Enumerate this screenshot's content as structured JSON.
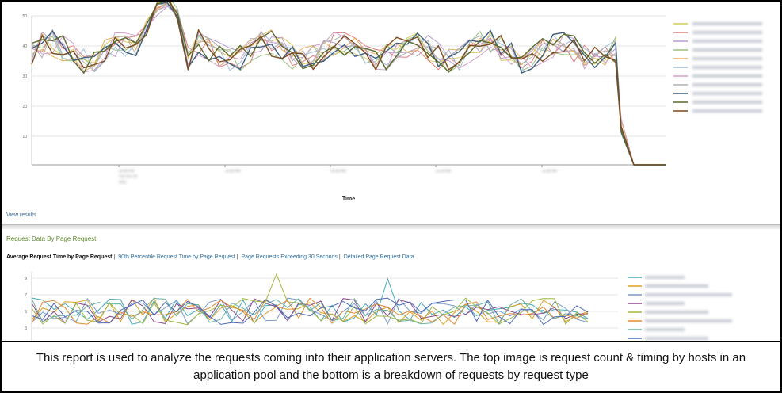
{
  "top_chart": {
    "y_ticks": [
      "50",
      "40",
      "30",
      "20",
      "10"
    ],
    "x_ticks": [
      "10:30 PM",
      "10:45 PM",
      "10:00 PM",
      "11:15 PM",
      "11:30 PM"
    ],
    "x_tick_sublabel": [
      "Tue Nov 29",
      "2011"
    ],
    "xlabel": "Time",
    "legend_count": 11,
    "colors": [
      "#d9c95a",
      "#e07b7b",
      "#b99ad0",
      "#9bc07e",
      "#e8b060",
      "#a0bcd8",
      "#d0a0c8",
      "#b0b0b0",
      "#3b5e7e",
      "#5a6a2a",
      "#7a4a1e"
    ]
  },
  "view_results": "View results",
  "section_title": "Request Data By Page Request",
  "tabs": {
    "active": "Average Request Time by Page Request",
    "tab2": "90th Percentile Request Time by Page Request",
    "tab3": "Page Requests Exceeding 30 Seconds",
    "tab4": "Detailed Page Request Data",
    "separator": "|"
  },
  "bottom_chart": {
    "y_ticks": [
      "9",
      "7",
      "5",
      "3"
    ],
    "legend_count": 8,
    "colors": [
      "#46a8b8",
      "#e0a020",
      "#7a9ac8",
      "#8a4a8a",
      "#a0b840",
      "#e08a30",
      "#6ab0a0",
      "#4a6ab8"
    ]
  },
  "caption": "This report is used to analyze the requests coming into their application servers.  The top image is request count & timing by hosts in an application pool and the bottom is a breakdown of requests by request type"
}
